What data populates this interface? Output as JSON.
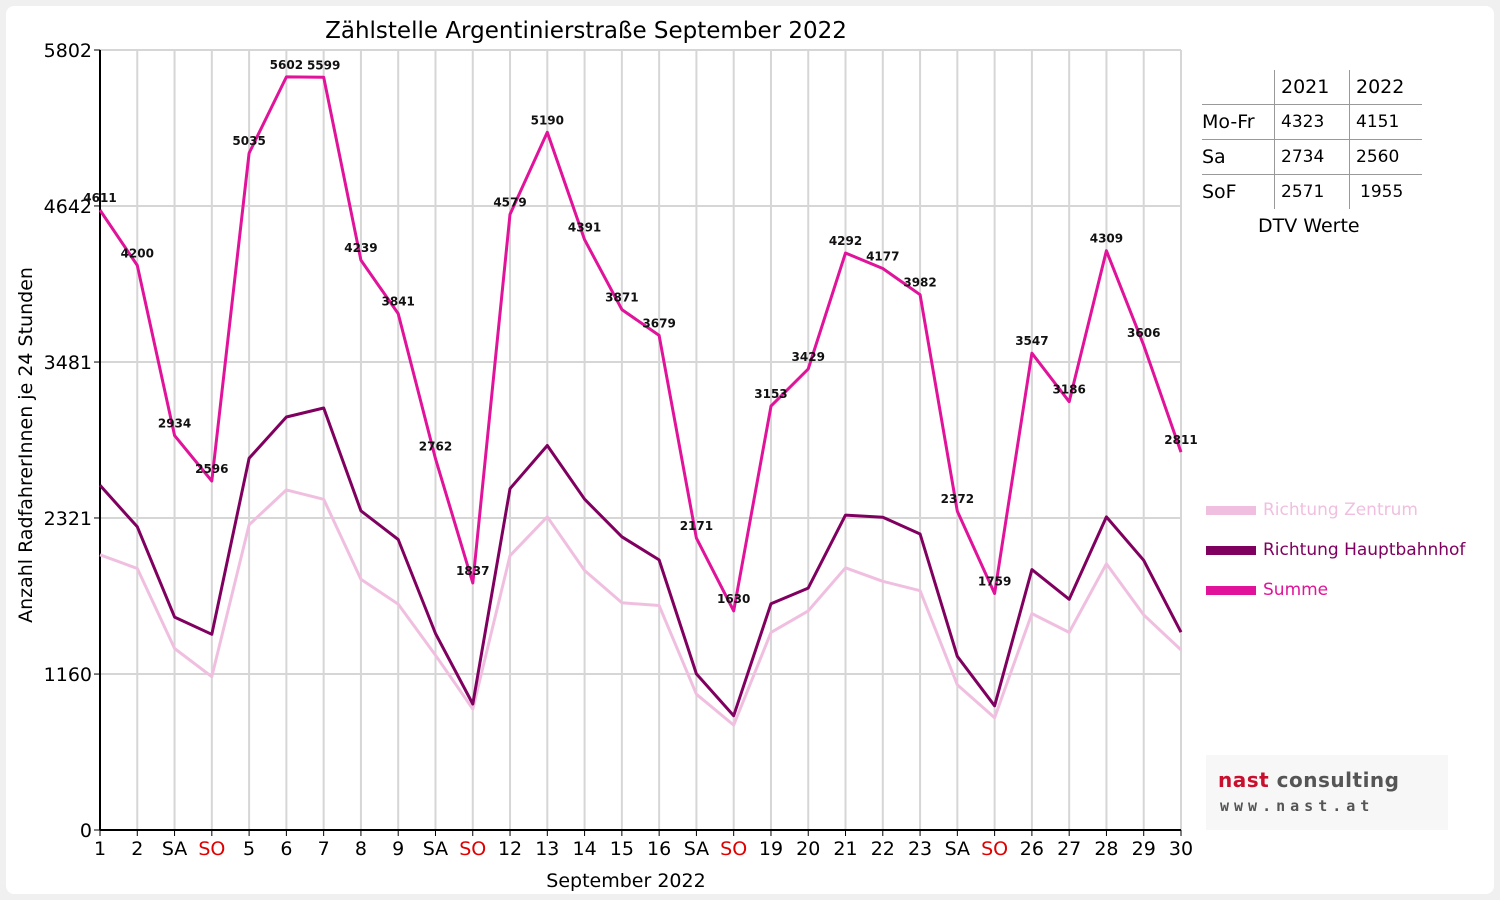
{
  "chart_data": {
    "type": "line",
    "title": "Zählstelle Argentinierstraße September 2022",
    "xlabel": "September 2022",
    "ylabel": "Anzahl RadfahrerInnen je 24 Stunden",
    "ylim": [
      0,
      5802
    ],
    "yticks": [
      "0",
      "1160",
      "2321",
      "3481",
      "4642",
      "5802"
    ],
    "categories": [
      "1",
      "2",
      "SA",
      "SO",
      "5",
      "6",
      "7",
      "8",
      "9",
      "SA",
      "SO",
      "12",
      "13",
      "14",
      "15",
      "16",
      "SA",
      "SO",
      "19",
      "20",
      "21",
      "22",
      "23",
      "SA",
      "SO",
      "26",
      "27",
      "28",
      "29",
      "30"
    ],
    "sunday_color": "#e00000",
    "series": [
      {
        "name": "Richtung Zentrum",
        "color": "#f0bfe0",
        "values": [
          2047,
          1945,
          1350,
          1140,
          2270,
          2530,
          2460,
          1865,
          1680,
          1300,
          900,
          2040,
          2330,
          1930,
          1690,
          1670,
          1010,
          780,
          1470,
          1630,
          1950,
          1850,
          1780,
          1080,
          835,
          1610,
          1470,
          1980,
          1600,
          1340
        ]
      },
      {
        "name": "Richtung Hauptbahnhof",
        "color": "#800060",
        "values": [
          2564,
          2255,
          1584,
          1456,
          2765,
          3072,
          3139,
          2374,
          2161,
          1462,
          937,
          2539,
          2860,
          2461,
          2181,
          2009,
          1161,
          850,
          1683,
          1799,
          2342,
          2327,
          2202,
          1292,
          924,
          1937,
          1716,
          2329,
          2006,
          1471
        ]
      },
      {
        "name": "Summe",
        "color": "#e0139a",
        "values": [
          4611,
          4200,
          2934,
          2596,
          5035,
          5602,
          5599,
          4239,
          3841,
          2762,
          1837,
          4579,
          5190,
          4391,
          3871,
          3679,
          2171,
          1630,
          3153,
          3429,
          4292,
          4177,
          3982,
          2372,
          1759,
          3547,
          3186,
          4309,
          3606,
          2811
        ],
        "labels": [
          "4611",
          "4200",
          "2934",
          "2596",
          "5035",
          "5602",
          "5599",
          "4239",
          "3841",
          "2762",
          "1837",
          "4579",
          "5190",
          "4391",
          "3871",
          "3679",
          "2171",
          "1630",
          "3153",
          "3429",
          "4292",
          "4177",
          "3982",
          "2372",
          "1759",
          "3547",
          "3186",
          "4309",
          "3606",
          "2811"
        ]
      }
    ]
  },
  "dtv_table": {
    "headers": [
      "",
      "2021",
      "2022"
    ],
    "rows": [
      {
        "label": "Mo-Fr",
        "y2021": "4323",
        "y2022": "4151"
      },
      {
        "label": "Sa",
        "y2021": "2734",
        "y2022": "2560"
      },
      {
        "label": "SoF",
        "y2021": "2571",
        "y2022": "1955"
      }
    ],
    "caption": "DTV Werte"
  },
  "legend": [
    {
      "label": "Richtung Zentrum",
      "color": "#f0bfe0"
    },
    {
      "label": "Richtung Hauptbahnhof",
      "color": "#800060"
    },
    {
      "label": "Summe",
      "color": "#e0139a"
    }
  ],
  "logo": {
    "line1_a": "nast",
    "line1_b": "consulting",
    "line2": "www.nast.at",
    "color_a": "#c8102e",
    "color_b": "#555555"
  }
}
